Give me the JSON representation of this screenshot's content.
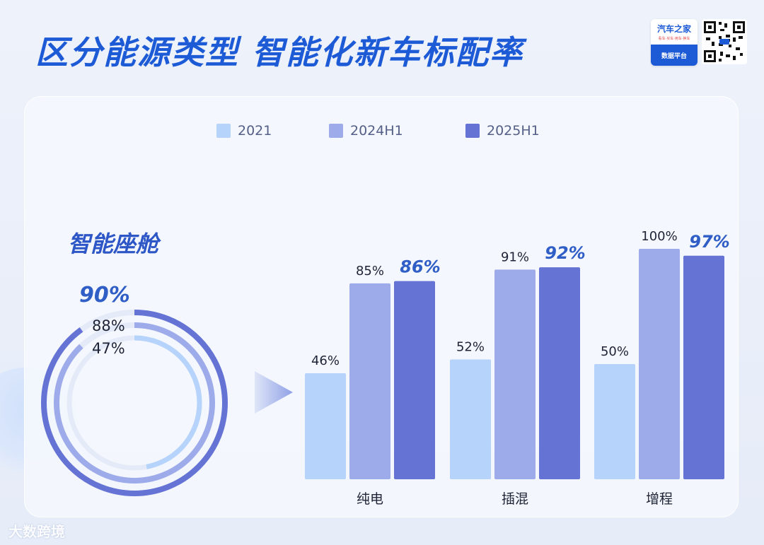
{
  "header": {
    "title": "区分能源类型  智能化新车标配率",
    "logo_name": "汽车之家",
    "logo_tagline": "看车·买车·用车·换车",
    "logo_platform": "数据平台"
  },
  "section": {
    "title": "智能座舱"
  },
  "colors": {
    "title": "#1d5bd6",
    "series_2021": "#b6d3fb",
    "series_2024H1": "#9eabea",
    "series_2025H1": "#6473d4",
    "highlight_label": "#2f5ec6"
  },
  "ring": {
    "values": [
      {
        "series": "2025H1",
        "value": 90,
        "label": "90%"
      },
      {
        "series": "2024H1",
        "value": 88,
        "label": "88%"
      },
      {
        "series": "2021",
        "value": 47,
        "label": "47%"
      }
    ]
  },
  "chart_data": {
    "type": "bar",
    "categories": [
      "纯电",
      "插混",
      "增程"
    ],
    "series": [
      {
        "name": "2021",
        "values": [
          46,
          52,
          50
        ]
      },
      {
        "name": "2024H1",
        "values": [
          85,
          91,
          100
        ]
      },
      {
        "name": "2025H1",
        "values": [
          86,
          92,
          97
        ]
      }
    ],
    "data_labels": [
      [
        "46%",
        "85%",
        "86%"
      ],
      [
        "52%",
        "91%",
        "92%"
      ],
      [
        "50%",
        "100%",
        "97%"
      ]
    ],
    "unit": "%",
    "ylim": [
      0,
      100
    ],
    "grid": false,
    "legend": "top"
  },
  "watermark": "大数跨境"
}
